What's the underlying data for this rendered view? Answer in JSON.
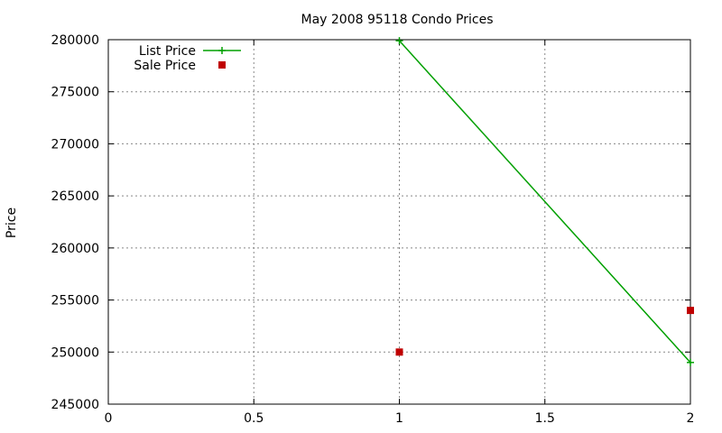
{
  "chart_data": {
    "type": "line",
    "title": "May 2008 95118 Condo Prices",
    "xlabel": "",
    "ylabel": "Price",
    "xlim": [
      0,
      2
    ],
    "ylim": [
      245000,
      280000
    ],
    "x_ticks": [
      "0",
      "0.5",
      "1",
      "1.5",
      "2"
    ],
    "x_tick_values": [
      0,
      0.5,
      1,
      1.5,
      2
    ],
    "y_ticks": [
      "245000",
      "250000",
      "255000",
      "260000",
      "265000",
      "270000",
      "275000",
      "280000"
    ],
    "y_tick_values": [
      245000,
      250000,
      255000,
      260000,
      265000,
      270000,
      275000,
      280000
    ],
    "grid": true,
    "legend_position": "top-left",
    "series": [
      {
        "name": "List Price",
        "style": "lines+points",
        "marker": "plus",
        "color": "#00a000",
        "points": [
          {
            "x": 1,
            "y": 279900
          },
          {
            "x": 2,
            "y": 249000
          }
        ]
      },
      {
        "name": "Sale Price",
        "style": "points",
        "marker": "square",
        "color": "#c00000",
        "points": [
          {
            "x": 1,
            "y": 250000
          },
          {
            "x": 2,
            "y": 254000
          }
        ]
      }
    ]
  }
}
